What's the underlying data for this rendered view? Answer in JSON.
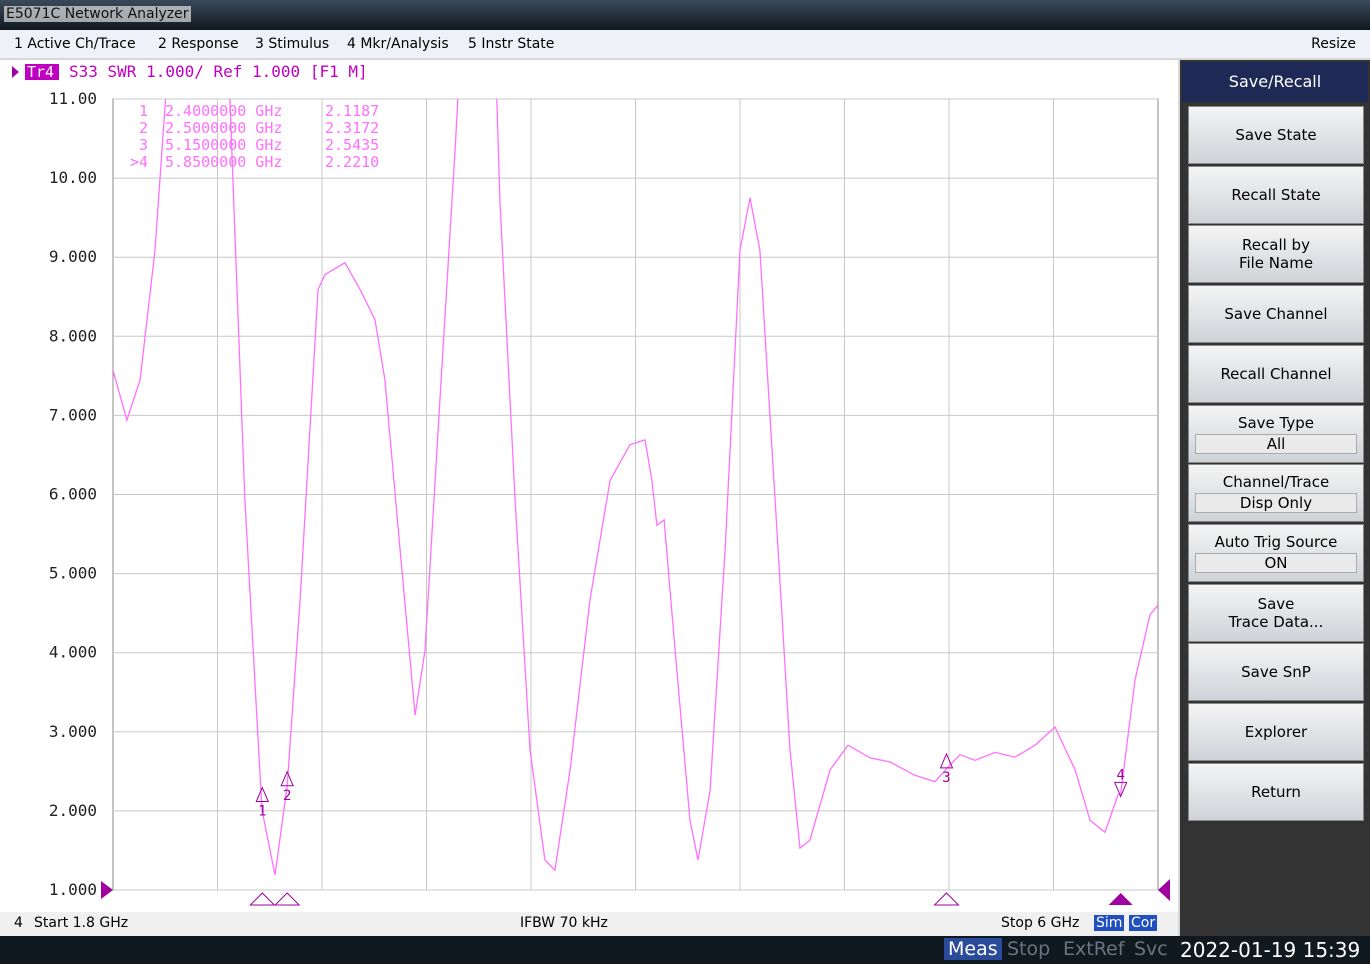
{
  "window_title": "E5071C Network Analyzer",
  "menu": [
    "1 Active Ch/Trace",
    "2 Response",
    "3 Stimulus",
    "4 Mkr/Analysis",
    "5 Instr State"
  ],
  "menu_right": "Resize",
  "trace_header": "S33 SWR 1.000/ Ref 1.000 [F1 M]",
  "chart_data": {
    "type": "line",
    "x": [
      1.8,
      1.856,
      1.909,
      1.969,
      2.029,
      2.27,
      2.33,
      2.399,
      2.451,
      2.5,
      2.552,
      2.624,
      2.652,
      2.732,
      2.793,
      2.853,
      2.893,
      2.954,
      3.014,
      3.054,
      3.114,
      3.175,
      3.2,
      3.335,
      3.355,
      3.416,
      3.476,
      3.536,
      3.576,
      3.637,
      3.717,
      3.798,
      3.878,
      3.938,
      3.966,
      3.986,
      4.015,
      4.059,
      4.119,
      4.151,
      4.2,
      4.26,
      4.32,
      4.36,
      4.4,
      4.461,
      4.521,
      4.561,
      4.601,
      4.682,
      4.754,
      4.843,
      4.923,
      5.023,
      5.104,
      5.152,
      5.204,
      5.265,
      5.345,
      5.425,
      5.506,
      5.586,
      5.667,
      5.727,
      5.787,
      5.839,
      5.85,
      5.908,
      5.968,
      6.0
    ],
    "series": [
      {
        "name": "Tr4",
        "color": "#ff70ff",
        "values": [
          7.57,
          6.94,
          7.45,
          9.09,
          11.8,
          11.0,
          5.93,
          2.01,
          1.19,
          2.32,
          4.67,
          8.59,
          8.78,
          8.93,
          8.59,
          8.21,
          7.45,
          5.3,
          3.21,
          4.03,
          7.19,
          10.36,
          11.8,
          11.8,
          9.72,
          5.93,
          2.77,
          1.38,
          1.25,
          2.52,
          4.67,
          6.18,
          6.63,
          6.69,
          6.18,
          5.61,
          5.68,
          4.03,
          1.88,
          1.38,
          2.26,
          5.3,
          9.09,
          9.75,
          9.09,
          5.93,
          2.77,
          1.53,
          1.63,
          2.52,
          2.83,
          2.67,
          2.62,
          2.45,
          2.37,
          2.54,
          2.71,
          2.64,
          2.74,
          2.68,
          2.83,
          3.06,
          2.52,
          1.88,
          1.73,
          2.2,
          2.22,
          3.66,
          4.48,
          4.6
        ]
      }
    ],
    "xlim": [
      1.8,
      6
    ],
    "ylim": [
      1,
      11
    ],
    "yticks": [
      {
        "value": 11,
        "label": "11.00"
      },
      {
        "value": 10,
        "label": "10.00"
      },
      {
        "value": 9,
        "label": "9.000"
      },
      {
        "value": 8,
        "label": "8.000"
      },
      {
        "value": 7,
        "label": "7.000"
      },
      {
        "value": 6,
        "label": "6.000"
      },
      {
        "value": 5,
        "label": "5.000"
      },
      {
        "value": 4,
        "label": "4.000"
      },
      {
        "value": 3,
        "label": "3.000"
      },
      {
        "value": 2,
        "label": "2.000"
      },
      {
        "value": 1,
        "label": "1.000"
      }
    ],
    "grid": true,
    "markers": [
      {
        "id": "1",
        "list_label": "1",
        "x": 2.4,
        "x_label": "2.4000000 GHz",
        "y": 2.1187,
        "active": false
      },
      {
        "id": "2",
        "list_label": "2",
        "x": 2.5,
        "x_label": "2.5000000 GHz",
        "y": 2.3172,
        "active": false
      },
      {
        "id": "3",
        "list_label": "3",
        "x": 5.15,
        "x_label": "5.1500000 GHz",
        "y": 2.5435,
        "active": false
      },
      {
        "id": "4",
        "list_label": ">4",
        "x": 5.85,
        "x_label": "5.8500000 GHz",
        "y": 2.221,
        "active": true
      }
    ]
  },
  "status": {
    "channel": "4",
    "start": "Start 1.8 GHz",
    "ifbw": "IFBW 70 kHz",
    "stop": "Stop 6 GHz",
    "sim": "Sim",
    "cor": "Cor"
  },
  "footer": {
    "items": [
      "Meas",
      "Stop",
      "ExtRef",
      "Svc"
    ],
    "datetime": "2022-01-19 15:39"
  },
  "softkeys": {
    "title": "Save/Recall",
    "buttons": [
      {
        "lines": [
          "Save State"
        ]
      },
      {
        "lines": [
          "Recall State"
        ]
      },
      {
        "lines": [
          "Recall by",
          "File Name"
        ]
      },
      {
        "lines": [
          "Save Channel"
        ]
      },
      {
        "lines": [
          "Recall Channel"
        ]
      },
      {
        "lines": [
          "Save Type"
        ],
        "value": "All"
      },
      {
        "lines": [
          "Channel/Trace"
        ],
        "value": "Disp Only"
      },
      {
        "lines": [
          "Auto Trig Source"
        ],
        "value": "ON"
      },
      {
        "lines": [
          "Save",
          "Trace Data..."
        ]
      },
      {
        "lines": [
          "Save SnP"
        ]
      },
      {
        "lines": [
          "Explorer"
        ]
      },
      {
        "lines": [
          "Return"
        ]
      }
    ]
  }
}
